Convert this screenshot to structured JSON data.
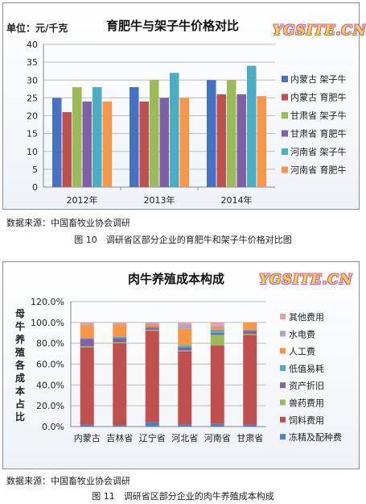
{
  "chart1": {
    "title": "育肥牛与架子牛价格对比",
    "unit": "单位：元/千克",
    "watermark": "YGSITE.CN",
    "source": "数据来源：中国畜牧业协会调研",
    "caption": "图 10　调研省区部分企业的育肥牛和架子牛价格对比图"
  },
  "chart2": {
    "title": "肉牛养殖成本构成",
    "ylabel_chars": [
      "母",
      "牛",
      "养",
      "殖",
      "各",
      "成",
      "本",
      "占",
      "比"
    ],
    "watermark": "YGSITE.CN",
    "source": "数据来源：中国畜牧业协会调研",
    "caption": "图 11　调研省区部分企业的肉牛养殖成本构成"
  },
  "chart_data": [
    {
      "type": "bar",
      "title": "育肥牛与架子牛价格对比",
      "ylabel": "单位：元/千克",
      "categories": [
        "2012年",
        "2013年",
        "2014年"
      ],
      "ylim": [
        0,
        40
      ],
      "yticks": [
        0,
        5,
        10,
        15,
        20,
        25,
        30,
        35,
        40
      ],
      "grid": true,
      "legend_position": "right",
      "series": [
        {
          "name": "内蒙古 架子牛",
          "color": "#4472c4",
          "values": [
            25,
            28,
            30
          ]
        },
        {
          "name": "内蒙古 育肥牛",
          "color": "#c0504d",
          "values": [
            21,
            24,
            26
          ]
        },
        {
          "name": "甘肃省 架子牛",
          "color": "#9bbb59",
          "values": [
            28,
            30,
            30
          ]
        },
        {
          "name": "甘肃省 育肥牛",
          "color": "#7f5fa8",
          "values": [
            24,
            25,
            26
          ]
        },
        {
          "name": "河南省 架子牛",
          "color": "#4bacc6",
          "values": [
            28,
            32,
            34
          ]
        },
        {
          "name": "河南省 育肥牛",
          "color": "#f79646",
          "values": [
            24,
            25,
            25.5
          ]
        }
      ]
    },
    {
      "type": "bar",
      "stacked": true,
      "title": "肉牛养殖成本构成",
      "categories": [
        "内蒙古",
        "吉林省",
        "辽宁省",
        "河北省",
        "河南省",
        "甘肃省"
      ],
      "ylim": [
        0,
        1.2
      ],
      "yticks": [
        "0.0%",
        "20.0%",
        "40.0%",
        "60.0%",
        "80.0%",
        "100.0%",
        "120.0%"
      ],
      "grid": true,
      "legend_position": "right",
      "series": [
        {
          "name": "冻精及配种费",
          "color": "#4f81bd",
          "values": [
            0.02,
            0.01,
            0.04,
            0.02,
            0.03,
            0.02
          ]
        },
        {
          "name": "饲料费用",
          "color": "#c0504d",
          "values": [
            0.74,
            0.79,
            0.88,
            0.7,
            0.75,
            0.86
          ]
        },
        {
          "name": "兽药费用",
          "color": "#9bbb59",
          "values": [
            0.01,
            0.01,
            0.01,
            0.01,
            0.1,
            0.01
          ]
        },
        {
          "name": "资产折旧",
          "color": "#8064a2",
          "values": [
            0.07,
            0.04,
            0.02,
            0.03,
            0.02,
            0.03
          ]
        },
        {
          "name": "低值易耗",
          "color": "#4bacc6",
          "values": [
            0.01,
            0.01,
            0.01,
            0.02,
            0.03,
            0.01
          ]
        },
        {
          "name": "人工费",
          "color": "#f79646",
          "values": [
            0.12,
            0.12,
            0.03,
            0.16,
            0.03,
            0.07
          ]
        },
        {
          "name": "水电费",
          "color": "#a5a5d6",
          "values": [
            0.01,
            0.01,
            0.01,
            0.04,
            0.01,
            0.0
          ]
        },
        {
          "name": "其他费用",
          "color": "#e8a0a0",
          "values": [
            0.02,
            0.01,
            0.0,
            0.02,
            0.03,
            0.0
          ]
        }
      ]
    }
  ]
}
